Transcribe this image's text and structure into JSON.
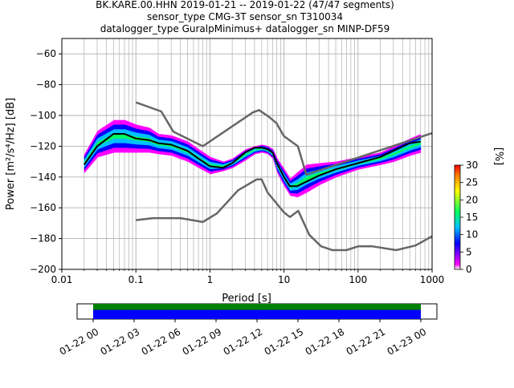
{
  "chart_data": {
    "type": "heatmap",
    "title_lines": [
      "BK.KARE.00.HHN   2019-01-21 -- 2019-01-22  (47/47 segments)",
      "sensor_type CMG-3T sensor_sn T310034",
      "datalogger_type GuralpMinimus+ datalogger_sn MINP-DF59"
    ],
    "xlabel": "Period [s]",
    "ylabel": "Power [m²/s⁴/Hz] [dB]",
    "x_scale": "log",
    "xlim": [
      0.01,
      1000
    ],
    "ylim": [
      -200,
      -50
    ],
    "x_ticks": [
      {
        "value": 0.01,
        "label": "0.01"
      },
      {
        "value": 0.1,
        "label": "0.1"
      },
      {
        "value": 1,
        "label": "1"
      },
      {
        "value": 10,
        "label": "10"
      },
      {
        "value": 100,
        "label": "100"
      },
      {
        "value": 1000,
        "label": "1000"
      }
    ],
    "y_ticks": [
      {
        "value": -60,
        "label": "−60"
      },
      {
        "value": -80,
        "label": "−80"
      },
      {
        "value": -100,
        "label": "−100"
      },
      {
        "value": -120,
        "label": "−120"
      },
      {
        "value": -140,
        "label": "−140"
      },
      {
        "value": -160,
        "label": "−160"
      },
      {
        "value": -180,
        "label": "−180"
      },
      {
        "value": -200,
        "label": "−200"
      }
    ],
    "grid": true,
    "colorbar": {
      "label": "[%]",
      "range": [
        0,
        30
      ],
      "ticks": [
        "0",
        "5",
        "10",
        "15",
        "20",
        "25",
        "30"
      ],
      "colors": [
        "#ffffff",
        "#ff00ff",
        "#0000ff",
        "#00c0ff",
        "#00ff60",
        "#ffff00",
        "#ff8000",
        "#ff0000"
      ]
    },
    "density_band": {
      "periods": [
        0.02,
        0.03,
        0.05,
        0.07,
        0.1,
        0.15,
        0.2,
        0.3,
        0.5,
        0.7,
        1,
        1.5,
        2,
        3,
        4,
        5,
        6,
        7,
        8,
        10,
        12,
        15,
        20,
        30,
        50,
        100,
        200,
        300,
        500,
        700
      ],
      "upper_db": [
        -125,
        -110,
        -103,
        -103,
        -106,
        -108,
        -112,
        -113,
        -117,
        -122,
        -127,
        -130,
        -128,
        -122,
        -120,
        -119,
        -120,
        -122,
        -128,
        -135,
        -141,
        -137,
        -132,
        -131,
        -130,
        -127,
        -124,
        -120,
        -115,
        -112
      ],
      "lower_db": [
        -137,
        -127,
        -124,
        -124,
        -124,
        -124,
        -125,
        -126,
        -130,
        -134,
        -138,
        -136,
        -134,
        -129,
        -125,
        -124,
        -125,
        -128,
        -137,
        -146,
        -152,
        -153,
        -150,
        -145,
        -140,
        -135,
        -132,
        -130,
        -126,
        -124
      ]
    },
    "series": [
      {
        "color": "#000000",
        "periods": [
          0.02,
          0.03,
          0.05,
          0.07,
          0.1,
          0.15,
          0.2,
          0.3,
          0.5,
          0.7,
          1,
          1.5,
          2,
          3,
          4,
          5,
          6,
          7,
          8,
          10,
          12,
          15,
          20,
          30,
          50,
          100,
          200,
          300,
          500,
          700
        ],
        "values": [
          -132,
          -120,
          -112,
          -112,
          -115,
          -116,
          -118,
          -119,
          -123,
          -128,
          -133,
          -134,
          -131,
          -124,
          -121,
          -121,
          -122,
          -124,
          -131,
          -140,
          -146,
          -146,
          -143,
          -139,
          -135,
          -131,
          -127,
          -123,
          -118,
          -117
        ]
      },
      {
        "color": "#666666",
        "periods": [
          0.1,
          0.22,
          0.32,
          0.8,
          3.8,
          4.6,
          6.3,
          7.9,
          10,
          15.4,
          20,
          1000
        ],
        "values": [
          -91.5,
          -97.4,
          -110.5,
          -120,
          -98,
          -96.5,
          -101,
          -105,
          -113.5,
          -120,
          -138.5,
          -111.5
        ]
      },
      {
        "color": "#666666",
        "periods": [
          0.1,
          0.17,
          0.4,
          0.8,
          1.24,
          2.4,
          4.3,
          5,
          6,
          10,
          12,
          15.6,
          21.9,
          31.6,
          45,
          70,
          101,
          154,
          328,
          600,
          1000
        ],
        "values": [
          -168,
          -166.7,
          -166.7,
          -169.2,
          -163.7,
          -148.6,
          -141.5,
          -141.5,
          -150,
          -163,
          -166,
          -162,
          -177.5,
          -185,
          -187.5,
          -187.5,
          -185,
          -185,
          -187.5,
          -184.5,
          -178.5
        ]
      }
    ]
  },
  "timeline": {
    "tick_labels": [
      "01-22 00",
      "01-22 03",
      "01-22 06",
      "01-22 09",
      "01-22 12",
      "01-22 15",
      "01-22 18",
      "01-22 21",
      "01-23 00"
    ],
    "coverage_color": "#008000",
    "data_color": "#0000ff"
  }
}
